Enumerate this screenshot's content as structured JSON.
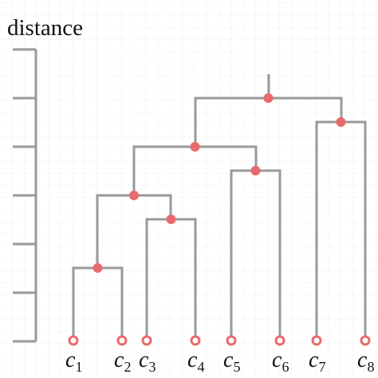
{
  "title": "distance",
  "leaves": [
    {
      "symbol": "c",
      "index": "1"
    },
    {
      "symbol": "c",
      "index": "2"
    },
    {
      "symbol": "c",
      "index": "3"
    },
    {
      "symbol": "c",
      "index": "4"
    },
    {
      "symbol": "c",
      "index": "5"
    },
    {
      "symbol": "c",
      "index": "6"
    },
    {
      "symbol": "c",
      "index": "7"
    },
    {
      "symbol": "c",
      "index": "8"
    }
  ]
}
